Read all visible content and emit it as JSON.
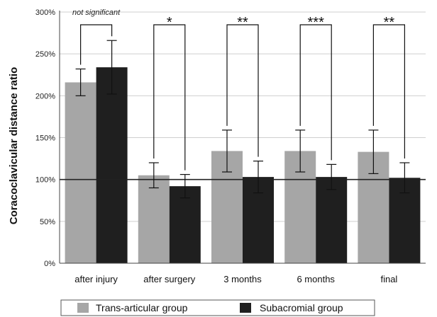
{
  "chart_data": {
    "type": "bar",
    "title": "",
    "xlabel": "",
    "ylabel": "Coracoclavicular distance ratio",
    "ylim": [
      0,
      300
    ],
    "yticks": [
      0,
      50,
      100,
      150,
      200,
      250,
      300
    ],
    "ytick_labels": [
      "0%",
      "50%",
      "100%",
      "150%",
      "200%",
      "250%",
      "300%"
    ],
    "reference_line": 100,
    "grid": true,
    "legend_position": "bottom",
    "categories": [
      "after injury",
      "after surgery",
      "3 months",
      "6 months",
      "final"
    ],
    "series": [
      {
        "name": "Trans-articular group",
        "color": "#a6a6a6",
        "values": [
          216,
          105,
          134,
          134,
          133
        ],
        "errors": [
          16,
          15,
          25,
          25,
          26
        ]
      },
      {
        "name": "Subacromial group",
        "color": "#1f1f1f",
        "values": [
          234,
          92,
          103,
          103,
          102
        ],
        "errors": [
          32,
          14,
          19,
          15,
          18
        ]
      }
    ],
    "significance": [
      "not significant",
      "*",
      "**",
      "***",
      "**"
    ]
  }
}
